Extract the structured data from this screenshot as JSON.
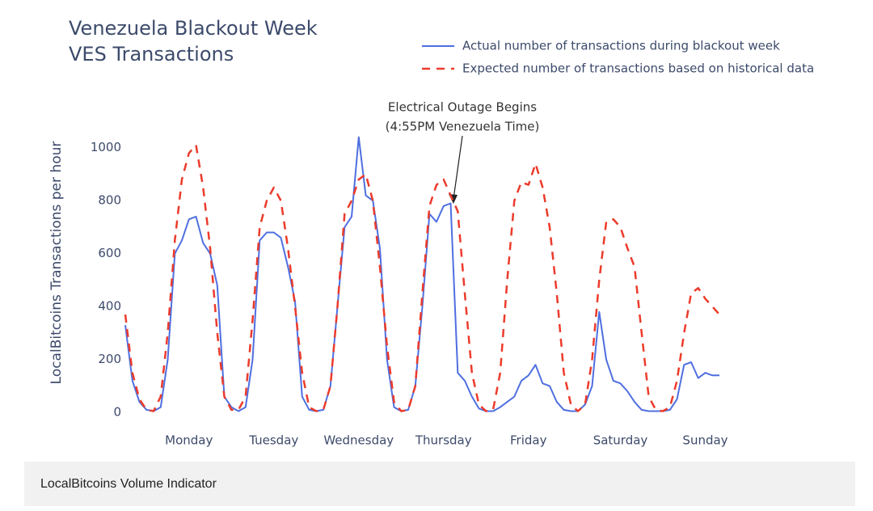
{
  "caption": "LocalBitcoins Volume Indicator",
  "chart_data": {
    "type": "line",
    "title": "Venezuela Blackout Week",
    "subtitle": "VES Transactions",
    "y_label": "LocalBitcoins Transactions per hour",
    "annotation": [
      "Electrical Outage Begins",
      "(4:55PM Venezuela Time)"
    ],
    "categories": [
      null,
      null,
      null,
      null,
      null,
      null,
      null,
      null,
      null,
      "Monday",
      null,
      null,
      null,
      null,
      null,
      null,
      null,
      null,
      null,
      null,
      null,
      "Tuesday",
      null,
      null,
      null,
      null,
      null,
      null,
      null,
      null,
      null,
      null,
      null,
      "Wednesday",
      null,
      null,
      null,
      null,
      null,
      null,
      null,
      null,
      null,
      null,
      null,
      "Thursday",
      null,
      null,
      null,
      null,
      null,
      null,
      null,
      null,
      null,
      null,
      null,
      "Friday",
      null,
      null,
      null,
      null,
      null,
      null,
      null,
      null,
      null,
      null,
      null,
      null,
      "Saturday",
      null,
      null,
      null,
      null,
      null,
      null,
      null,
      null,
      null,
      null,
      null,
      "Sunday",
      null,
      null
    ],
    "series": [
      {
        "name": "Actual number of transactions during blackout week",
        "color": "#4f6fe0",
        "dash": false,
        "values": [
          330,
          120,
          40,
          10,
          5,
          20,
          200,
          600,
          650,
          730,
          740,
          640,
          600,
          480,
          60,
          20,
          5,
          20,
          200,
          650,
          680,
          680,
          660,
          550,
          420,
          60,
          10,
          5,
          10,
          100,
          400,
          700,
          740,
          1040,
          820,
          800,
          620,
          200,
          20,
          5,
          10,
          100,
          400,
          750,
          720,
          780,
          790,
          150,
          120,
          60,
          15,
          5,
          5,
          20,
          40,
          60,
          120,
          140,
          180,
          110,
          100,
          40,
          10,
          5,
          5,
          30,
          100,
          380,
          200,
          120,
          110,
          80,
          40,
          10,
          5,
          5,
          5,
          10,
          50,
          180,
          190,
          130,
          150,
          140,
          140
        ]
      },
      {
        "name": "Expected number of transactions based on historical data",
        "color": "#ec3b2b",
        "dash": true,
        "values": [
          370,
          150,
          50,
          10,
          5,
          60,
          300,
          650,
          880,
          980,
          1010,
          850,
          620,
          300,
          60,
          10,
          10,
          60,
          350,
          700,
          800,
          850,
          800,
          620,
          400,
          150,
          20,
          5,
          10,
          100,
          400,
          750,
          800,
          880,
          900,
          800,
          550,
          250,
          40,
          5,
          10,
          100,
          450,
          780,
          860,
          880,
          820,
          760,
          450,
          150,
          30,
          5,
          10,
          150,
          500,
          800,
          870,
          860,
          940,
          850,
          700,
          450,
          150,
          30,
          5,
          30,
          200,
          500,
          720,
          730,
          700,
          620,
          550,
          300,
          60,
          10,
          5,
          20,
          120,
          300,
          450,
          470,
          430,
          400,
          370
        ]
      }
    ],
    "ylim": [
      -30,
      1100
    ],
    "yticks": [
      0,
      200,
      400,
      600,
      800,
      1000
    ],
    "grid": false
  }
}
